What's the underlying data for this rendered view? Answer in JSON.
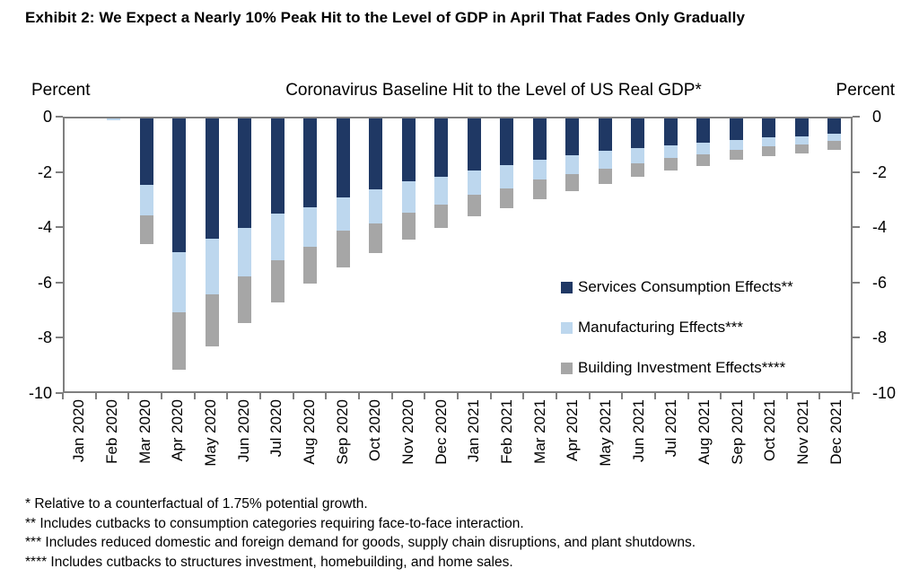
{
  "exhibit_title": "Exhibit 2: We Expect a Nearly 10% Peak Hit to the Level of GDP in April That Fades Only Gradually",
  "chart_data": {
    "type": "bar",
    "stacked": true,
    "title": "Coronavirus Baseline Hit to the Level of US Real GDP*",
    "left_axis_label": "Percent",
    "right_axis_label": "Percent",
    "ylim": [
      -10,
      0
    ],
    "yticks": [
      0,
      -2,
      -4,
      -6,
      -8,
      -10
    ],
    "grid": false,
    "legend_position": "inside-right",
    "axis_color": "#7f7f7f",
    "categories": [
      "Jan 2020",
      "Feb 2020",
      "Mar 2020",
      "Apr 2020",
      "May 2020",
      "Jun 2020",
      "Jul 2020",
      "Aug 2020",
      "Sep 2020",
      "Oct 2020",
      "Nov 2020",
      "Dec 2020",
      "Jan 2021",
      "Feb 2021",
      "Mar 2021",
      "Apr 2021",
      "May 2021",
      "Jun 2021",
      "Jul 2021",
      "Aug 2021",
      "Sep 2021",
      "Oct 2021",
      "Nov 2021",
      "Dec 2021"
    ],
    "series": [
      {
        "name": "Services Consumption Effects**",
        "color": "#1f3864",
        "values": [
          0,
          0,
          -2.45,
          -4.9,
          -4.4,
          -4.0,
          -3.5,
          -3.25,
          -2.9,
          -2.6,
          -2.3,
          -2.15,
          -1.9,
          -1.7,
          -1.5,
          -1.35,
          -1.2,
          -1.1,
          -1.0,
          -0.9,
          -0.8,
          -0.7,
          -0.65,
          -0.55
        ]
      },
      {
        "name": "Manufacturing Effects***",
        "color": "#bdd7ee",
        "values": [
          0,
          -0.05,
          -1.1,
          -2.2,
          -2.05,
          -1.8,
          -1.7,
          -1.45,
          -1.2,
          -1.25,
          -1.15,
          -1.0,
          -0.9,
          -0.85,
          -0.75,
          -0.7,
          -0.65,
          -0.55,
          -0.45,
          -0.4,
          -0.35,
          -0.33,
          -0.3,
          -0.27
        ]
      },
      {
        "name": "Building Investment Effects****",
        "color": "#a6a6a6",
        "values": [
          0,
          0,
          -1.05,
          -2.1,
          -1.9,
          -1.7,
          -1.55,
          -1.35,
          -1.35,
          -1.1,
          -1.0,
          -0.85,
          -0.8,
          -0.75,
          -0.7,
          -0.6,
          -0.55,
          -0.5,
          -0.45,
          -0.45,
          -0.35,
          -0.35,
          -0.35,
          -0.33
        ]
      }
    ]
  },
  "footnotes": [
    "* Relative to a counterfactual of 1.75% potential growth.",
    "** Includes cutbacks to consumption categories requiring face-to-face interaction.",
    "*** Includes reduced domestic and foreign demand for goods, supply chain disruptions, and plant shutdowns.",
    "**** Includes cutbacks to structures investment, homebuilding, and home sales."
  ]
}
